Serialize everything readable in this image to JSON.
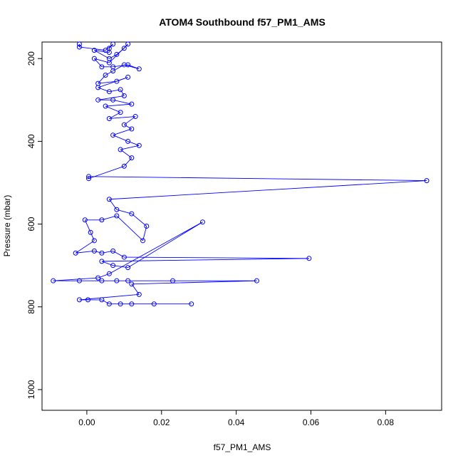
{
  "chart_data": {
    "type": "scatter",
    "title": "ATOM4 Southbound f57_PM1_AMS",
    "xlabel": "f57_PM1_AMS",
    "ylabel": "Pressure (mbar)",
    "xlim": [
      -0.012,
      0.095
    ],
    "ylim": [
      1050,
      160
    ],
    "y_reversed": true,
    "x_ticks": [
      0.0,
      0.02,
      0.04,
      0.06,
      0.08
    ],
    "x_tick_labels": [
      "0.00",
      "0.02",
      "0.04",
      "0.06",
      "0.08"
    ],
    "y_ticks": [
      200,
      400,
      600,
      800,
      1000
    ],
    "y_tick_labels": [
      "200",
      "400",
      "600",
      "800",
      "1000"
    ],
    "grid": false,
    "legend": "none",
    "series": [
      {
        "color": "#0000ff",
        "marker": "open-circle",
        "connected": true,
        "points": [
          [
            -0.002,
            165
          ],
          [
            -0.002,
            172
          ],
          [
            0.005,
            180
          ],
          [
            0.007,
            165
          ],
          [
            0.006,
            175
          ],
          [
            0.006,
            185
          ],
          [
            0.002,
            180
          ],
          [
            0.006,
            200
          ],
          [
            0.008,
            190
          ],
          [
            0.01,
            175
          ],
          [
            0.011,
            165
          ],
          [
            0.006,
            210
          ],
          [
            0.002,
            200
          ],
          [
            0.004,
            220
          ],
          [
            0.007,
            220
          ],
          [
            0.011,
            215
          ],
          [
            0.014,
            225
          ],
          [
            0.01,
            215
          ],
          [
            0.007,
            230
          ],
          [
            0.005,
            240
          ],
          [
            0.003,
            260
          ],
          [
            0.008,
            255
          ],
          [
            0.011,
            245
          ],
          [
            0.003,
            270
          ],
          [
            0.006,
            280
          ],
          [
            0.009,
            275
          ],
          [
            0.01,
            290
          ],
          [
            0.003,
            300
          ],
          [
            0.007,
            300
          ],
          [
            0.012,
            310
          ],
          [
            0.005,
            315
          ],
          [
            0.009,
            330
          ],
          [
            0.006,
            345
          ],
          [
            0.013,
            340
          ],
          [
            0.01,
            360
          ],
          [
            0.012,
            370
          ],
          [
            0.007,
            385
          ],
          [
            0.011,
            400
          ],
          [
            0.014,
            410
          ],
          [
            0.009,
            420
          ],
          [
            0.012,
            440
          ],
          [
            0.01,
            460
          ],
          [
            0.0005,
            490
          ],
          [
            0.0005,
            485
          ],
          [
            0.091,
            495
          ],
          [
            0.006,
            540
          ],
          [
            0.008,
            565
          ],
          [
            0.012,
            575
          ],
          [
            0.016,
            605
          ],
          [
            0.015,
            640
          ],
          [
            0.008,
            580
          ],
          [
            0.004,
            590
          ],
          [
            -0.0005,
            590
          ],
          [
            0.001,
            620
          ],
          [
            0.002,
            640
          ],
          [
            -0.003,
            670
          ],
          [
            0.002,
            665
          ],
          [
            0.004,
            670
          ],
          [
            0.007,
            665
          ],
          [
            0.01,
            680
          ],
          [
            0.0595,
            683
          ],
          [
            0.004,
            690
          ],
          [
            0.007,
            700
          ],
          [
            0.011,
            705
          ],
          [
            0.031,
            595
          ],
          [
            0.006,
            720
          ],
          [
            0.003,
            730
          ],
          [
            -0.009,
            737
          ],
          [
            -0.002,
            737
          ],
          [
            0.004,
            737
          ],
          [
            0.008,
            737
          ],
          [
            0.011,
            737
          ],
          [
            0.023,
            737
          ],
          [
            0.0455,
            737
          ],
          [
            0.012,
            745
          ],
          [
            0.014,
            770
          ],
          [
            -0.002,
            783
          ],
          [
            0.0003,
            783
          ],
          [
            0.004,
            783
          ],
          [
            0.006,
            793
          ],
          [
            0.009,
            793
          ],
          [
            0.012,
            793
          ],
          [
            0.018,
            793
          ],
          [
            0.028,
            793
          ]
        ]
      }
    ]
  }
}
